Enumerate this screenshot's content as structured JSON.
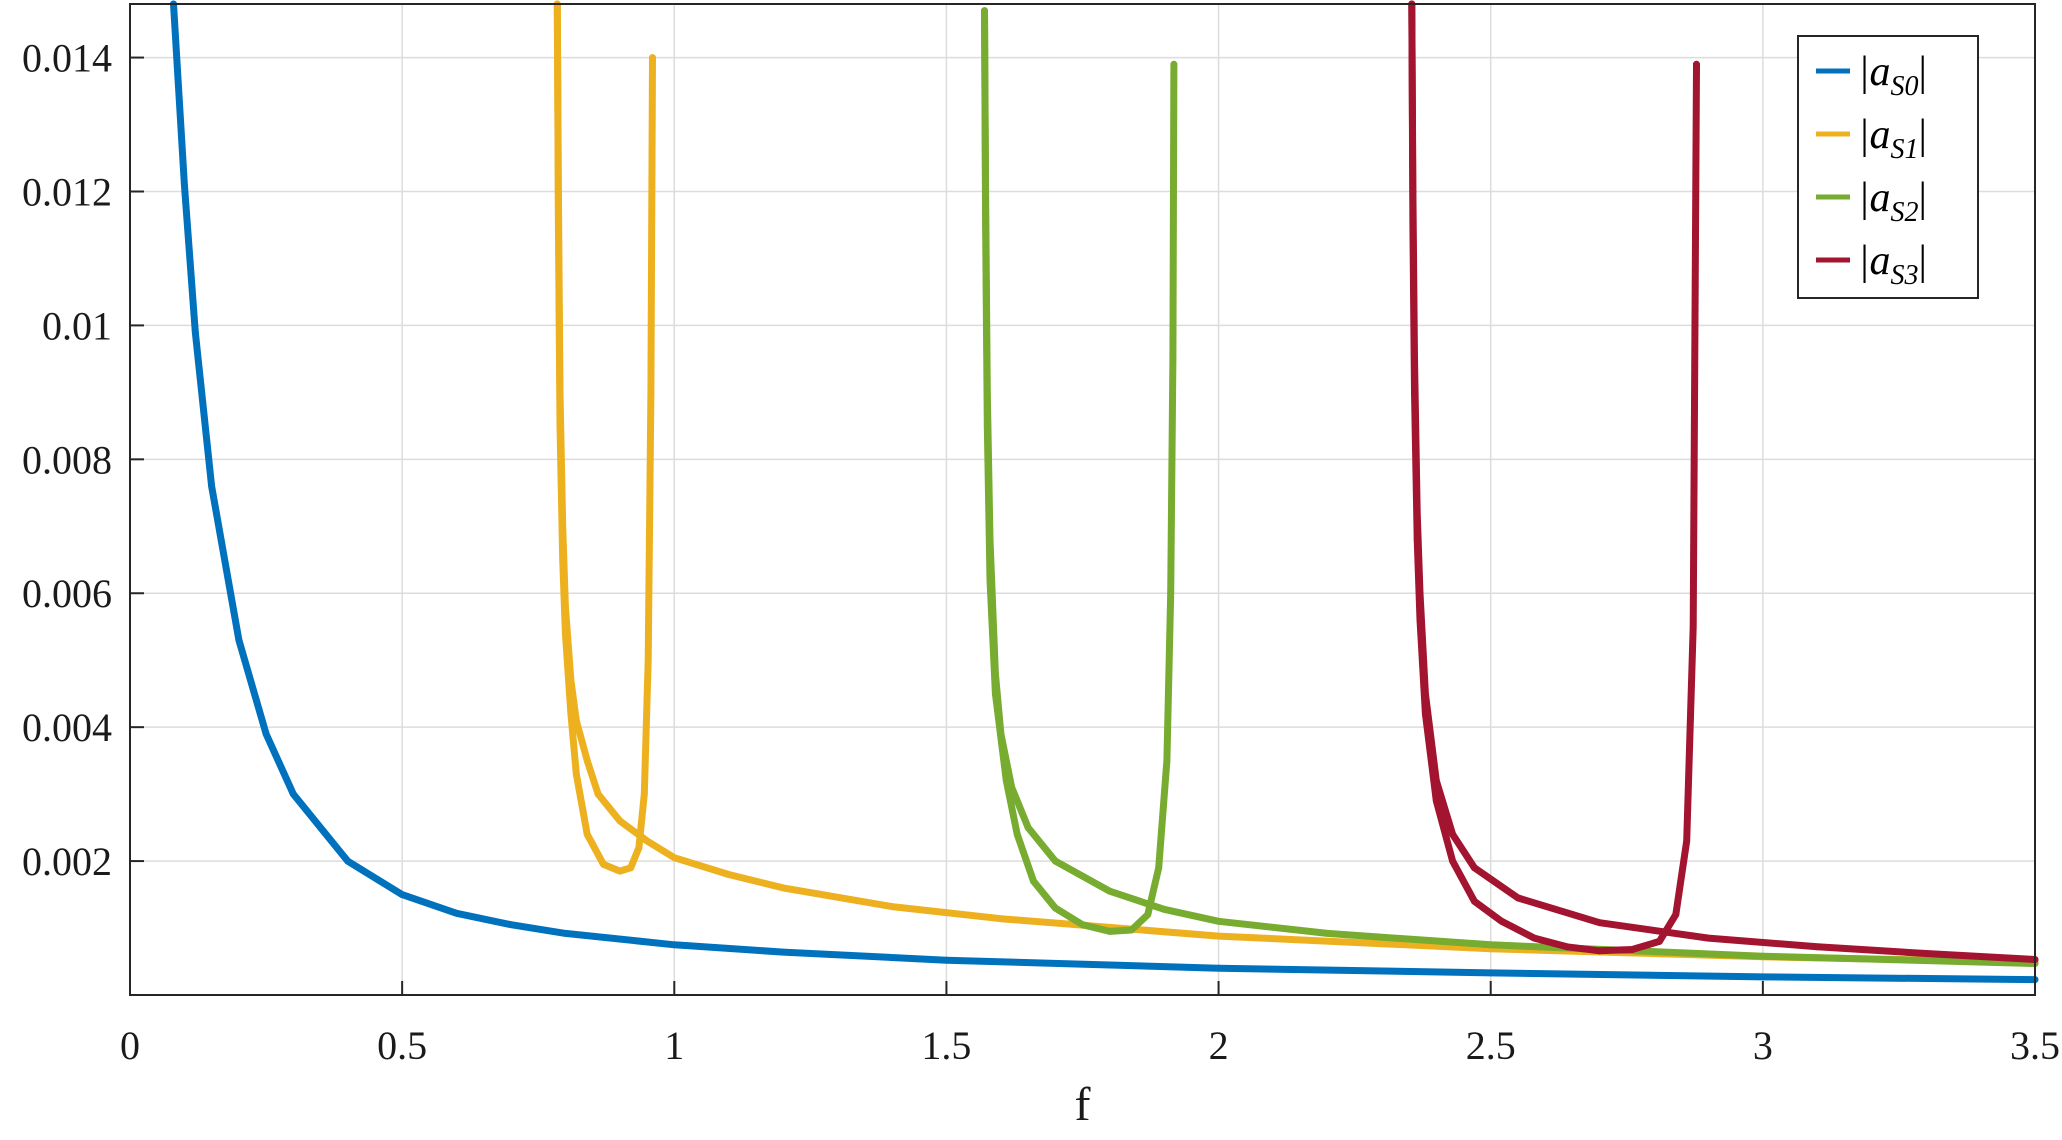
{
  "chart_data": {
    "type": "scatter",
    "title": "",
    "xlabel": "f",
    "ylabel": "",
    "xlim": [
      0,
      3.5
    ],
    "ylim": [
      0,
      0.0148
    ],
    "xticks": [
      0,
      0.5,
      1,
      1.5,
      2,
      2.5,
      3,
      3.5
    ],
    "xtick_labels": [
      "0",
      "0.5",
      "1",
      "1.5",
      "2",
      "2.5",
      "3",
      "3.5"
    ],
    "yticks": [
      0.002,
      0.004,
      0.006,
      0.008,
      0.01,
      0.012,
      0.014
    ],
    "ytick_labels": [
      "0.002",
      "0.004",
      "0.006",
      "0.008",
      "0.01",
      "0.012",
      "0.014"
    ],
    "grid": true,
    "legend_position": "top-right",
    "series": [
      {
        "name": "|a_S0|",
        "legend_main": "|a",
        "legend_sub": "S0",
        "legend_end": "|",
        "color": "#0072BD",
        "branches": [
          {
            "x": [
              0.08,
              0.1,
              0.12,
              0.15,
              0.2,
              0.25,
              0.3,
              0.4,
              0.5,
              0.6,
              0.7,
              0.8,
              1.0,
              1.2,
              1.5,
              2.0,
              2.5,
              3.0,
              3.5
            ],
            "y": [
              0.0148,
              0.0121,
              0.0099,
              0.0076,
              0.0053,
              0.0039,
              0.003,
              0.002,
              0.0015,
              0.00122,
              0.00105,
              0.00092,
              0.00075,
              0.00064,
              0.00052,
              0.0004,
              0.00033,
              0.00027,
              0.00023
            ]
          }
        ]
      },
      {
        "name": "|a_S1|",
        "legend_main": "|a",
        "legend_sub": "S1",
        "legend_end": "|",
        "color": "#EDB120",
        "branches": [
          {
            "x": [
              0.785,
              0.787,
              0.79,
              0.795,
              0.8,
              0.81,
              0.82,
              0.84,
              0.86,
              0.9,
              0.95,
              1.0,
              1.1,
              1.2,
              1.4,
              1.6,
              2.0,
              2.5,
              3.0,
              3.5
            ],
            "y": [
              0.0148,
              0.012,
              0.009,
              0.007,
              0.0058,
              0.0047,
              0.0041,
              0.0035,
              0.003,
              0.0026,
              0.0023,
              0.00205,
              0.0018,
              0.0016,
              0.00132,
              0.00114,
              0.00088,
              0.00069,
              0.00057,
              0.00049
            ]
          },
          {
            "x": [
              0.785,
              0.787,
              0.79,
              0.795,
              0.8,
              0.81,
              0.82,
              0.84,
              0.87,
              0.9,
              0.92,
              0.935,
              0.945,
              0.952,
              0.957,
              0.96
            ],
            "y": [
              0.0148,
              0.0115,
              0.0085,
              0.0065,
              0.0054,
              0.0042,
              0.0033,
              0.0024,
              0.00195,
              0.00185,
              0.0019,
              0.0022,
              0.003,
              0.005,
              0.009,
              0.014
            ]
          }
        ]
      },
      {
        "name": "|a_S2|",
        "legend_main": "|a",
        "legend_sub": "S2",
        "legend_end": "|",
        "color": "#77AC30",
        "branches": [
          {
            "x": [
              1.57,
              1.572,
              1.575,
              1.58,
              1.59,
              1.6,
              1.62,
              1.65,
              1.7,
              1.8,
              1.9,
              2.0,
              2.2,
              2.5,
              3.0,
              3.5
            ],
            "y": [
              0.0147,
              0.012,
              0.009,
              0.0068,
              0.0048,
              0.0039,
              0.0031,
              0.0025,
              0.002,
              0.00155,
              0.00128,
              0.0011,
              0.00092,
              0.00075,
              0.00058,
              0.00047
            ]
          },
          {
            "x": [
              1.57,
              1.572,
              1.575,
              1.58,
              1.59,
              1.61,
              1.63,
              1.66,
              1.7,
              1.75,
              1.8,
              1.84,
              1.87,
              1.89,
              1.905,
              1.912,
              1.916,
              1.918
            ],
            "y": [
              0.0147,
              0.0115,
              0.0085,
              0.0062,
              0.0045,
              0.0032,
              0.0024,
              0.0017,
              0.0013,
              0.00105,
              0.00095,
              0.00097,
              0.0012,
              0.0019,
              0.0035,
              0.006,
              0.0095,
              0.0139
            ]
          }
        ]
      },
      {
        "name": "|a_S3|",
        "legend_main": "|a",
        "legend_sub": "S3",
        "legend_end": "|",
        "color": "#A2142F",
        "branches": [
          {
            "x": [
              2.355,
              2.357,
              2.36,
              2.365,
              2.37,
              2.38,
              2.4,
              2.43,
              2.47,
              2.55,
              2.7,
              2.9,
              3.1,
              3.3,
              3.5
            ],
            "y": [
              0.0148,
              0.012,
              0.0095,
              0.0072,
              0.006,
              0.0045,
              0.0032,
              0.0024,
              0.0019,
              0.00145,
              0.00108,
              0.00085,
              0.00072,
              0.00062,
              0.00053
            ]
          },
          {
            "x": [
              2.355,
              2.357,
              2.36,
              2.365,
              2.37,
              2.38,
              2.4,
              2.43,
              2.47,
              2.52,
              2.58,
              2.64,
              2.7,
              2.76,
              2.81,
              2.84,
              2.86,
              2.872,
              2.878
            ],
            "y": [
              0.0148,
              0.0115,
              0.009,
              0.0068,
              0.0056,
              0.0042,
              0.0029,
              0.002,
              0.0014,
              0.0011,
              0.00085,
              0.00072,
              0.00066,
              0.00068,
              0.0008,
              0.0012,
              0.0023,
              0.0055,
              0.0139
            ]
          }
        ]
      }
    ]
  }
}
